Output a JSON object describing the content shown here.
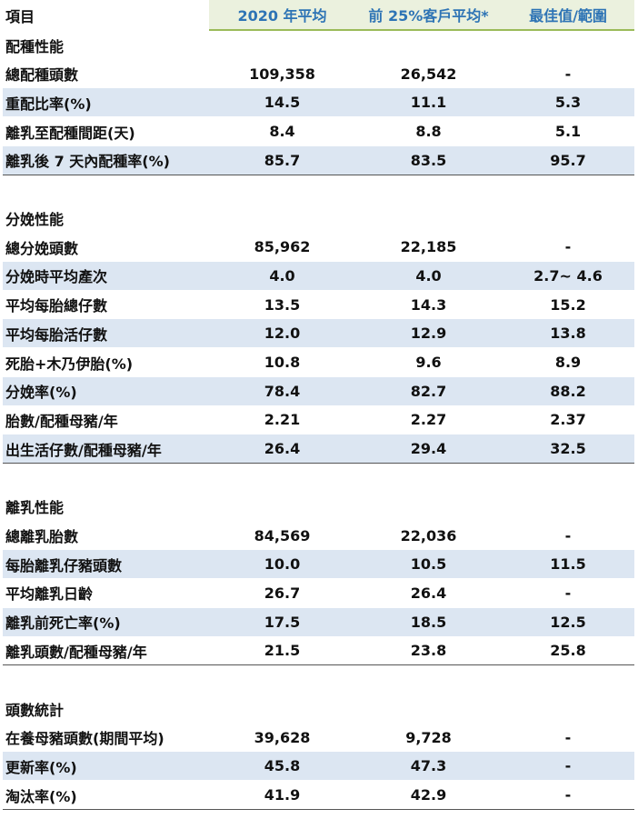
{
  "header": {
    "item": "項目",
    "col1": "2020 年平均",
    "col2": "前 25%客戶平均*",
    "col3": "最佳值/範圍"
  },
  "sections": [
    {
      "title": "配種性能",
      "rows": [
        [
          "總配種頭數",
          "109,358",
          "26,542",
          "-"
        ],
        [
          "重配比率(%)",
          "14.5",
          "11.1",
          "5.3"
        ],
        [
          "離乳至配種間距(天)",
          "8.4",
          "8.8",
          "5.1"
        ],
        [
          "離乳後 7 天內配種率(%)",
          "85.7",
          "83.5",
          "95.7"
        ]
      ]
    },
    {
      "title": "分娩性能",
      "rows": [
        [
          "總分娩頭數",
          "85,962",
          "22,185",
          "-"
        ],
        [
          "分娩時平均產次",
          "4.0",
          "4.0",
          "2.7~ 4.6"
        ],
        [
          "平均每胎總仔數",
          "13.5",
          "14.3",
          "15.2"
        ],
        [
          "平均每胎活仔數",
          "12.0",
          "12.9",
          "13.8"
        ],
        [
          "死胎+木乃伊胎(%)",
          "10.8",
          "9.6",
          "8.9"
        ],
        [
          "分娩率(%)",
          "78.4",
          "82.7",
          "88.2"
        ],
        [
          "胎數/配種母豬/年",
          "2.21",
          "2.27",
          "2.37"
        ],
        [
          "出生活仔數/配種母豬/年",
          "26.4",
          "29.4",
          "32.5"
        ]
      ]
    },
    {
      "title": "離乳性能",
      "rows": [
        [
          "總離乳胎數",
          "84,569",
          "22,036",
          "-"
        ],
        [
          "每胎離乳仔豬頭數",
          "10.0",
          "10.5",
          "11.5"
        ],
        [
          "平均離乳日齡",
          "26.7",
          "26.4",
          "-"
        ],
        [
          "離乳前死亡率(%)",
          "17.5",
          "18.5",
          "12.5"
        ],
        [
          "離乳頭數/配種母豬/年",
          "21.5",
          "23.8",
          "25.8"
        ]
      ]
    },
    {
      "title": "頭數統計",
      "rows": [
        [
          "在養母豬頭數(期間平均)",
          "39,628",
          "9,728",
          "-"
        ],
        [
          "更新率(%)",
          "45.8",
          "47.3",
          "-"
        ],
        [
          "淘汰率(%)",
          "41.9",
          "42.9",
          "-"
        ]
      ]
    }
  ]
}
